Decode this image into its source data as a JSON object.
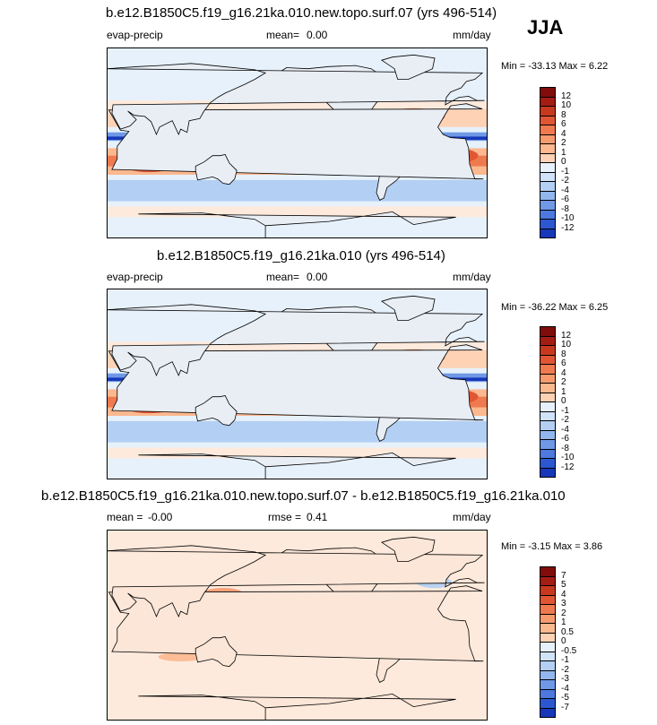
{
  "season": "JJA",
  "colors": {
    "pos": [
      "#feeadc",
      "#fdd2b5",
      "#fcb88f",
      "#f79b6e",
      "#ef7a4f",
      "#e05634",
      "#c7391f",
      "#a41d12",
      "#800d0b"
    ],
    "neg": [
      "#e6f1fb",
      "#d0e3f8",
      "#b3cff3",
      "#92b7ee",
      "#6f98e6",
      "#4d78de",
      "#2d57d0",
      "#1738b8",
      "#0a1e96",
      "#000a70"
    ],
    "ocean": "#e6f1fb",
    "land_line": "#000000"
  },
  "chart_data": [
    {
      "type": "heatmap",
      "title": "b.e12.B1850C5.f19_g16.21ka.010.new.topo.surf.07 (yrs 496-514)",
      "variable": "evap-precip",
      "mean_label": "mean=",
      "mean_value": "0.00",
      "units": "mm/day",
      "min_max": "Min = -33.13 Max =   6.22",
      "colorbar_levels": [
        "12",
        "10",
        "8",
        "6",
        "4",
        "2",
        "1",
        "0",
        "-1",
        "-2",
        "-4",
        "-6",
        "-8",
        "-10",
        "-12"
      ]
    },
    {
      "type": "heatmap",
      "title": "b.e12.B1850C5.f19_g16.21ka.010 (yrs 496-514)",
      "variable": "evap-precip",
      "mean_label": "mean=",
      "mean_value": "0.00",
      "units": "mm/day",
      "min_max": "Min = -36.22 Max =   6.25",
      "colorbar_levels": [
        "12",
        "10",
        "8",
        "6",
        "4",
        "2",
        "1",
        "0",
        "-1",
        "-2",
        "-4",
        "-6",
        "-8",
        "-10",
        "-12"
      ]
    },
    {
      "type": "heatmap",
      "title": "b.e12.B1850C5.f19_g16.21ka.010.new.topo.surf.07 - b.e12.B1850C5.f19_g16.21ka.010",
      "variable": "mean =",
      "mean_value": "-0.00",
      "rmse_label": "rmse =",
      "rmse_value": "0.41",
      "units": "mm/day",
      "min_max": "Min =  -3.15 Max =   3.86",
      "colorbar_levels": [
        "7",
        "5",
        "4",
        "3",
        "2",
        "1",
        "0.5",
        "0",
        "-0.5",
        "-1",
        "-2",
        "-3",
        "-4",
        "-5",
        "-7"
      ]
    }
  ]
}
